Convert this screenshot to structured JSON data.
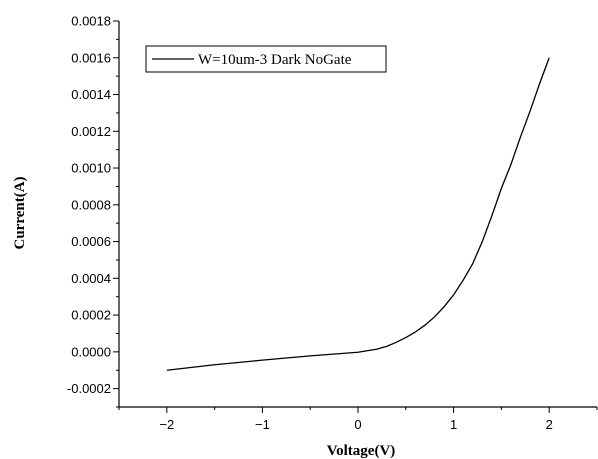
{
  "chart_data": {
    "type": "line",
    "xlabel": "Voltage(V)",
    "ylabel": "Current(A)",
    "xlim": [
      -2.5,
      2.5
    ],
    "ylim": [
      -0.0003,
      0.0018
    ],
    "x_ticks": [
      -2,
      -1,
      0,
      1,
      2
    ],
    "x_tick_labels": [
      "−2",
      "−1",
      "0",
      "1",
      "2"
    ],
    "y_ticks": [
      -0.0002,
      0,
      0.0002,
      0.0004,
      0.0006,
      0.0008,
      0.001,
      0.0012,
      0.0014,
      0.0016,
      0.0018
    ],
    "y_tick_labels": [
      "-0.0002",
      "0.0000",
      "0.0002",
      "0.0004",
      "0.0006",
      "0.0008",
      "0.0010",
      "0.0012",
      "0.0014",
      "0.0016",
      "0.0018"
    ],
    "grid": false,
    "legend_position": "top-left",
    "series": [
      {
        "name": "W=10um-3 Dark NoGate",
        "color": "#000000",
        "x": [
          -2.0,
          -1.5,
          -1.0,
          -0.5,
          0.0,
          0.2,
          0.3,
          0.4,
          0.5,
          0.6,
          0.7,
          0.8,
          0.9,
          1.0,
          1.1,
          1.2,
          1.3,
          1.4,
          1.5,
          1.6,
          1.7,
          1.8,
          1.9,
          2.0
        ],
        "y": [
          -0.0001,
          -7e-05,
          -4.5e-05,
          -2.2e-05,
          -2e-06,
          1.5e-05,
          3e-05,
          5.2e-05,
          7.8e-05,
          0.000108,
          0.000145,
          0.00019,
          0.000245,
          0.00031,
          0.00039,
          0.00048,
          0.0006,
          0.00074,
          0.00089,
          0.00102,
          0.00117,
          0.00131,
          0.00146,
          0.0016
        ]
      }
    ]
  }
}
